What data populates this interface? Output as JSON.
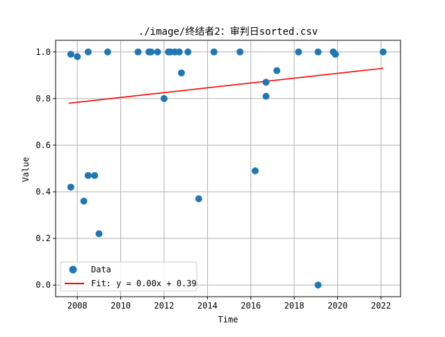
{
  "chart_data": {
    "type": "scatter",
    "title": "./image/终结者2：审判日sorted.csv",
    "xlabel": "Time",
    "ylabel": "Value",
    "xlim": [
      2007.0,
      2022.9
    ],
    "ylim": [
      -0.05,
      1.05
    ],
    "grid": true,
    "legend_placement": "lower-left",
    "colors": {
      "points": "#1f77b4",
      "fit": "#ff0000",
      "grid": "#b0b0b0"
    },
    "x_ticks": [
      2008,
      2010,
      2012,
      2014,
      2016,
      2018,
      2020,
      2022
    ],
    "x_tick_labels": [
      "2008",
      "2010",
      "2012",
      "2014",
      "2016",
      "2018",
      "2020",
      "2022"
    ],
    "y_ticks": [
      0.0,
      0.2,
      0.4,
      0.6,
      0.8,
      1.0
    ],
    "y_tick_labels": [
      "0.0",
      "0.2",
      "0.4",
      "0.6",
      "0.8",
      "1.0"
    ],
    "series": [
      {
        "name": "Data",
        "kind": "scatter",
        "points": [
          {
            "x": 2007.7,
            "y": 0.42
          },
          {
            "x": 2007.7,
            "y": 0.99
          },
          {
            "x": 2008.0,
            "y": 0.98
          },
          {
            "x": 2008.3,
            "y": 0.36
          },
          {
            "x": 2008.5,
            "y": 0.47
          },
          {
            "x": 2008.5,
            "y": 1.0
          },
          {
            "x": 2008.8,
            "y": 0.47
          },
          {
            "x": 2009.0,
            "y": 0.22
          },
          {
            "x": 2009.4,
            "y": 1.0
          },
          {
            "x": 2010.8,
            "y": 1.0
          },
          {
            "x": 2011.3,
            "y": 1.0
          },
          {
            "x": 2011.4,
            "y": 1.0
          },
          {
            "x": 2011.7,
            "y": 1.0
          },
          {
            "x": 2012.0,
            "y": 0.8
          },
          {
            "x": 2012.2,
            "y": 1.0
          },
          {
            "x": 2012.3,
            "y": 1.0
          },
          {
            "x": 2012.5,
            "y": 1.0
          },
          {
            "x": 2012.7,
            "y": 1.0
          },
          {
            "x": 2012.8,
            "y": 0.91
          },
          {
            "x": 2013.1,
            "y": 1.0
          },
          {
            "x": 2013.6,
            "y": 0.37
          },
          {
            "x": 2014.3,
            "y": 1.0
          },
          {
            "x": 2015.5,
            "y": 1.0
          },
          {
            "x": 2016.2,
            "y": 0.49
          },
          {
            "x": 2016.7,
            "y": 0.87
          },
          {
            "x": 2016.7,
            "y": 0.81
          },
          {
            "x": 2017.2,
            "y": 0.92
          },
          {
            "x": 2018.2,
            "y": 1.0
          },
          {
            "x": 2019.1,
            "y": 1.0
          },
          {
            "x": 2019.1,
            "y": 0.0
          },
          {
            "x": 2019.8,
            "y": 1.0
          },
          {
            "x": 2019.9,
            "y": 0.99
          },
          {
            "x": 2022.1,
            "y": 1.0
          }
        ]
      },
      {
        "name": "Fit: y = 0.00x + 0.39",
        "kind": "line",
        "points": [
          {
            "x": 2007.6,
            "y": 0.78
          },
          {
            "x": 2022.1,
            "y": 0.93
          }
        ]
      }
    ]
  }
}
